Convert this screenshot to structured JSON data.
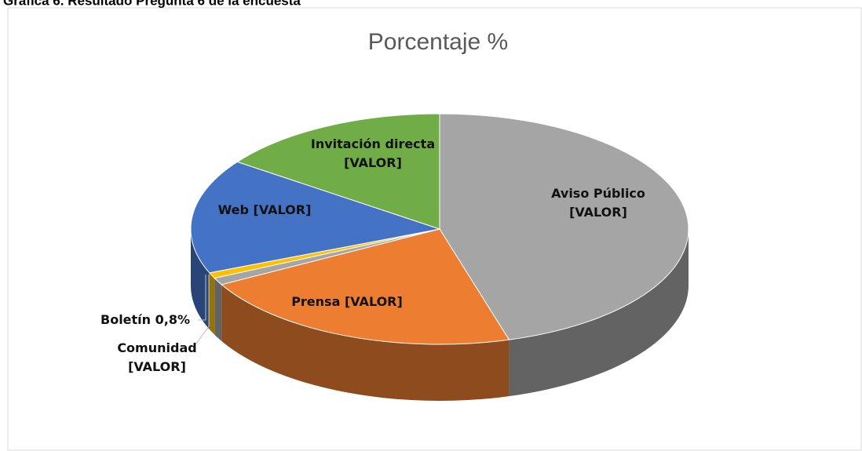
{
  "heading": "Gráfica 6. Resultado Pregunta 6 de la encuesta",
  "chart_data": {
    "type": "pie3d",
    "title": "Porcentaje %",
    "categories": [
      "Aviso Público",
      "Prensa",
      "Comunidad",
      "Boletín",
      "Web",
      "Invitación directa"
    ],
    "values": [
      45.5,
      21.5,
      1.0,
      0.8,
      16.1,
      15.1
    ],
    "value_labels": [
      "[VALOR]",
      "[VALOR]",
      "[VALOR]",
      "0,8%",
      "[VALOR]",
      "[VALOR]"
    ],
    "colors": [
      "#a5a5a5",
      "#ed7d31",
      "#a5a5a5",
      "#ffc000",
      "#4472c4",
      "#70ad47"
    ]
  }
}
